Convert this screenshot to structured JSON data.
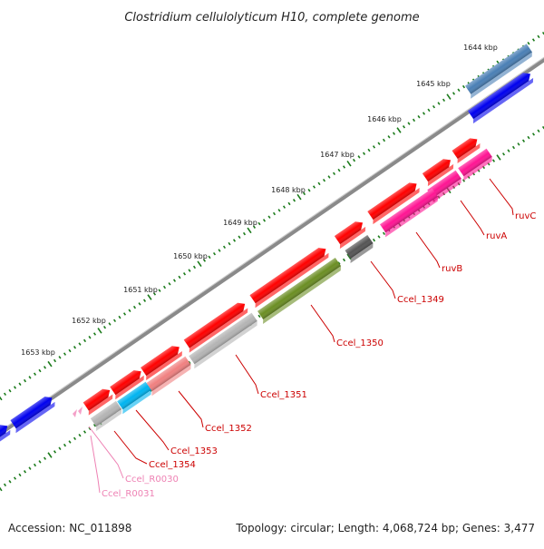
{
  "title": "Clostridium cellulolyticum H10, complete genome",
  "footer": {
    "accession": "Accession: NC_011898",
    "summary": "Topology: circular; Length: 4,068,724 bp; Genes: 3,477"
  },
  "scale_labels": [
    "1644 kbp",
    "1645 kbp",
    "1646 kbp",
    "1647 kbp",
    "1648 kbp",
    "1649 kbp",
    "1650 kbp",
    "1651 kbp",
    "1652 kbp",
    "1653 kbp"
  ],
  "colors": {
    "backbone": "#8a8a8a",
    "cds_red": "#ff0000",
    "cds_blue": "#0000ee",
    "cds_steel": "#4a7fb5",
    "cds_pink": "#ff1493",
    "cds_gray": "#555555",
    "cds_olive": "#6b8e23",
    "cds_silver": "#b4b4b4",
    "cds_salmon": "#f08080",
    "cds_cyan": "#00b4f0",
    "rna_pink": "#f4a0c8",
    "tick_green": "#1a7a1a"
  },
  "features": [
    {
      "name": "ruvC",
      "strand": "inner",
      "color_key": "cds_pink"
    },
    {
      "name": "ruvA",
      "strand": "inner",
      "color_key": "cds_pink"
    },
    {
      "name": "ruvB",
      "strand": "inner",
      "color_key": "cds_pink"
    },
    {
      "name": "Ccel_1349",
      "strand": "inner",
      "color_key": "cds_gray"
    },
    {
      "name": "Ccel_1350",
      "strand": "inner",
      "color_key": "cds_olive"
    },
    {
      "name": "Ccel_1351",
      "strand": "inner",
      "color_key": "cds_silver"
    },
    {
      "name": "Ccel_1352",
      "strand": "inner",
      "color_key": "cds_salmon"
    },
    {
      "name": "Ccel_1353",
      "strand": "inner",
      "color_key": "cds_cyan"
    },
    {
      "name": "Ccel_1354",
      "strand": "inner",
      "color_key": "cds_silver"
    },
    {
      "name": "Ccel_R0030",
      "strand": "inner",
      "color_key": "rna_pink"
    },
    {
      "name": "Ccel_R0031",
      "strand": "inner",
      "color_key": "rna_pink"
    }
  ]
}
